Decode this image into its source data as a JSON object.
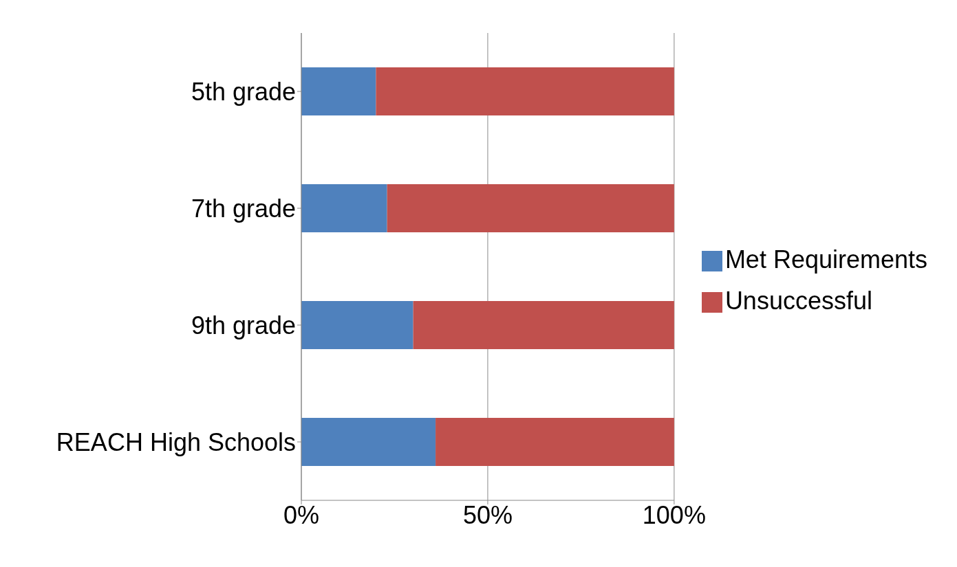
{
  "chart_data": {
    "type": "bar",
    "orientation": "horizontal",
    "stacked": true,
    "categories": [
      "5th grade",
      "7th grade",
      "9th grade",
      "REACH High Schools"
    ],
    "series": [
      {
        "name": "Met Requirements",
        "color": "#4f81bd",
        "values": [
          20,
          23,
          30,
          36
        ]
      },
      {
        "name": "Unsuccessful",
        "color": "#c0504d",
        "values": [
          80,
          77,
          70,
          64
        ]
      }
    ],
    "xlim": [
      0,
      100
    ],
    "xticks": [
      {
        "value": 0,
        "label": "0%"
      },
      {
        "value": 50,
        "label": "50%"
      },
      {
        "value": 100,
        "label": "100%"
      }
    ],
    "grid": "x",
    "legend": "right"
  }
}
